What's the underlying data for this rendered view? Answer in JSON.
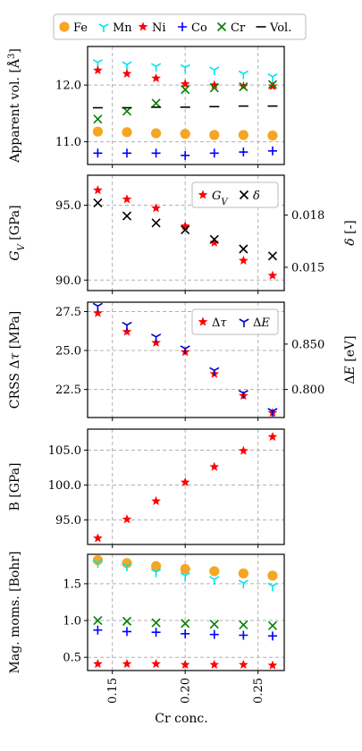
{
  "figure": {
    "xlabel": "Cr conc.",
    "x_ticks": [
      "0.15",
      "0.20",
      "0.25"
    ],
    "x_tick_values": [
      0.15,
      0.2,
      0.25
    ],
    "xlim": [
      0.133,
      0.268
    ],
    "grid": true
  },
  "legend_top": {
    "placement": "top",
    "entries": [
      {
        "label": "Fe",
        "marker": "circle",
        "color": "#f5a623"
      },
      {
        "label": "Mn",
        "marker": "tri_down",
        "color": "#00e5ee"
      },
      {
        "label": "Ni",
        "marker": "star",
        "color": "#ff0000"
      },
      {
        "label": "Co",
        "marker": "plus",
        "color": "#0000ff"
      },
      {
        "label": "Cr",
        "marker": "x",
        "color": "#008000"
      },
      {
        "label": "Vol.",
        "marker": "hline",
        "color": "#000000"
      }
    ]
  },
  "chart_data": [
    {
      "type": "scatter",
      "ylabel": "Apparent vol. [Å³]",
      "ylim": [
        10.6,
        12.68
      ],
      "y_ticks": [
        11.0,
        12.0
      ],
      "y_tick_labels": [
        "11.0",
        "12.0"
      ],
      "x": [
        0.14,
        0.16,
        0.18,
        0.2,
        0.22,
        0.24,
        0.26
      ],
      "series": [
        {
          "name": "Fe",
          "marker": "circle",
          "color": "#f5a623",
          "values": [
            11.18,
            11.17,
            11.15,
            11.14,
            11.12,
            11.12,
            11.11
          ]
        },
        {
          "name": "Mn",
          "marker": "tri_down",
          "color": "#00e5ee",
          "values": [
            12.4,
            12.36,
            12.33,
            12.31,
            12.27,
            12.2,
            12.15
          ]
        },
        {
          "name": "Ni",
          "marker": "star",
          "color": "#ff0000",
          "values": [
            12.26,
            12.2,
            12.12,
            12.02,
            12.0,
            11.98,
            11.98
          ]
        },
        {
          "name": "Co",
          "marker": "plus",
          "color": "#0000ff",
          "values": [
            10.8,
            10.8,
            10.8,
            10.76,
            10.8,
            10.82,
            10.84
          ]
        },
        {
          "name": "Cr",
          "marker": "x",
          "color": "#008000",
          "values": [
            11.4,
            11.54,
            11.68,
            11.92,
            11.95,
            11.97,
            12.01
          ]
        },
        {
          "name": "Vol.",
          "marker": "hline",
          "color": "#000000",
          "values": [
            11.6,
            11.6,
            11.61,
            11.61,
            11.62,
            11.63,
            11.63
          ]
        }
      ]
    },
    {
      "type": "scatter",
      "ylabel": "G_V [GPa]",
      "ylim": [
        89.3,
        97.0
      ],
      "y_ticks": [
        90.0,
        95.0
      ],
      "y_tick_labels": [
        "90.0",
        "95.0"
      ],
      "y2label": "δ [-]",
      "y2lim": [
        0.01366,
        0.02029
      ],
      "y2_ticks": [
        0.015,
        0.018
      ],
      "y2_tick_labels": [
        "0.015",
        "0.018"
      ],
      "legend": {
        "placement": "top-right",
        "entries": [
          "G_V",
          "δ"
        ]
      },
      "x": [
        0.14,
        0.16,
        0.18,
        0.2,
        0.22,
        0.24,
        0.26
      ],
      "series": [
        {
          "name": "G_V",
          "axis": "left",
          "marker": "star",
          "color": "#ff0000",
          "values": [
            96.0,
            95.4,
            94.8,
            93.6,
            92.5,
            91.3,
            90.3
          ]
        },
        {
          "name": "δ",
          "axis": "right",
          "marker": "x",
          "color": "#000000",
          "values": [
            0.0187,
            0.01795,
            0.01755,
            0.01715,
            0.0166,
            0.01605,
            0.01565
          ]
        }
      ]
    },
    {
      "type": "scatter",
      "ylabel": "CRSS Δτ [MPa]",
      "ylim": [
        20.7,
        28.1
      ],
      "y_ticks": [
        22.5,
        25.0,
        27.5
      ],
      "y_tick_labels": [
        "22.5",
        "25.0",
        "27.5"
      ],
      "y2label": "ΔE [eV]",
      "y2lim": [
        0.7691,
        0.8962
      ],
      "y2_ticks": [
        0.8,
        0.85
      ],
      "y2_tick_labels": [
        "0.800",
        "0.850"
      ],
      "legend": {
        "placement": "top-right",
        "entries": [
          "Δτ",
          "ΔE"
        ]
      },
      "x": [
        0.14,
        0.16,
        0.18,
        0.2,
        0.22,
        0.24,
        0.26
      ],
      "series": [
        {
          "name": "Δτ",
          "axis": "left",
          "marker": "star",
          "color": "#ff0000",
          "values": [
            27.4,
            26.2,
            25.5,
            24.9,
            23.5,
            22.1,
            21.0
          ]
        },
        {
          "name": "ΔE",
          "axis": "right",
          "marker": "tri_down",
          "color": "#0000cc",
          "values": [
            0.892,
            0.871,
            0.858,
            0.845,
            0.821,
            0.796,
            0.776
          ]
        }
      ]
    },
    {
      "type": "scatter",
      "ylabel": "B [GPa]",
      "ylim": [
        91.5,
        108.0
      ],
      "y_ticks": [
        95.0,
        100.0,
        105.0
      ],
      "y_tick_labels": [
        "95.0",
        "100.0",
        "105.0"
      ],
      "x": [
        0.14,
        0.16,
        0.18,
        0.2,
        0.22,
        0.24,
        0.26
      ],
      "series": [
        {
          "name": "B",
          "marker": "star",
          "color": "#ff0000",
          "values": [
            92.4,
            95.1,
            97.7,
            100.4,
            102.6,
            104.9,
            106.9
          ]
        }
      ]
    },
    {
      "type": "scatter",
      "ylabel": "Mag. moms. [Bohr]",
      "ylim": [
        0.32,
        1.9
      ],
      "y_ticks": [
        0.5,
        1.0,
        1.5
      ],
      "y_tick_labels": [
        "0.5",
        "1.0",
        "1.5"
      ],
      "x": [
        0.14,
        0.16,
        0.18,
        0.2,
        0.22,
        0.24,
        0.26
      ],
      "series": [
        {
          "name": "Fe",
          "marker": "circle",
          "color": "#f5a623",
          "values": [
            1.82,
            1.78,
            1.74,
            1.7,
            1.67,
            1.64,
            1.61
          ]
        },
        {
          "name": "Mn",
          "marker": "tri_down",
          "color": "#00e5ee",
          "values": [
            1.79,
            1.74,
            1.66,
            1.61,
            1.56,
            1.51,
            1.47
          ]
        },
        {
          "name": "Ni",
          "marker": "star",
          "color": "#ff0000",
          "values": [
            0.41,
            0.41,
            0.41,
            0.4,
            0.4,
            0.4,
            0.39
          ]
        },
        {
          "name": "Co",
          "marker": "plus",
          "color": "#0000ff",
          "values": [
            0.87,
            0.85,
            0.84,
            0.82,
            0.81,
            0.8,
            0.79
          ]
        },
        {
          "name": "Cr",
          "marker": "x",
          "color": "#008000",
          "values": [
            1.0,
            0.99,
            0.97,
            0.96,
            0.95,
            0.94,
            0.93
          ]
        }
      ]
    }
  ]
}
